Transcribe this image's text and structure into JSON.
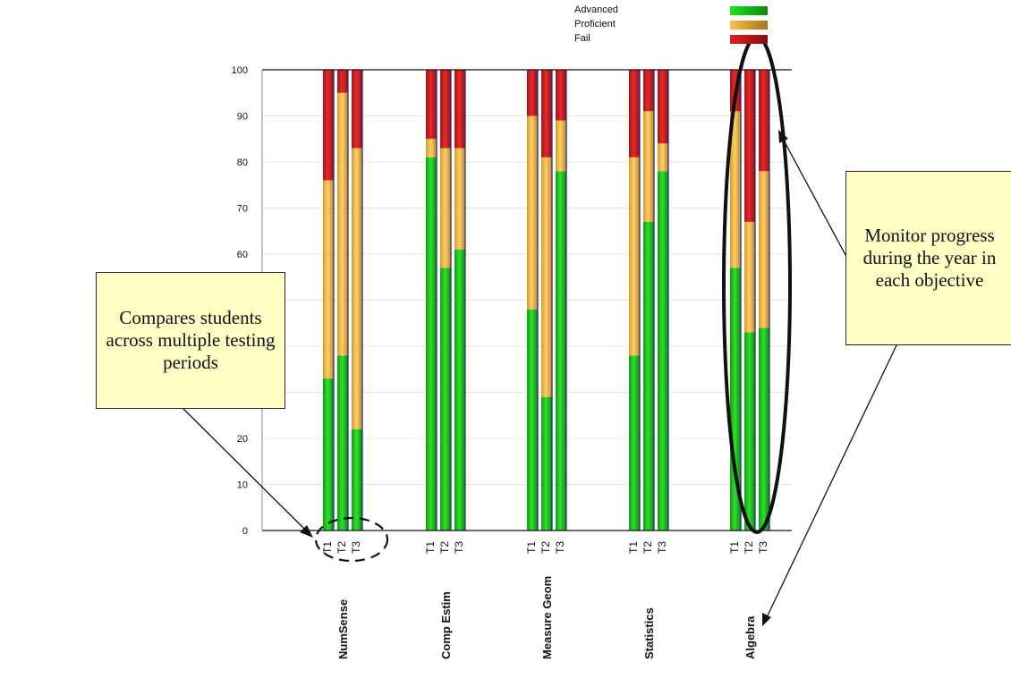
{
  "chart_data": {
    "type": "bar",
    "stacked": true,
    "orientation": "vertical",
    "groups": [
      "NumSense",
      "Comp Estim",
      "Measure Geom",
      "Statistics",
      "Algebra"
    ],
    "periods": [
      "T1",
      "T2",
      "T3"
    ],
    "ylim": [
      0,
      100
    ],
    "yticks": [
      0,
      10,
      20,
      30,
      40,
      50,
      60,
      70,
      80,
      90,
      100
    ],
    "grid": true,
    "legend_position": "top-right",
    "series": [
      {
        "name": "Advanced",
        "color": "#16c416",
        "values": [
          [
            33,
            38,
            22
          ],
          [
            81,
            57,
            61
          ],
          [
            48,
            29,
            78
          ],
          [
            38,
            67,
            78
          ],
          [
            57,
            43,
            44
          ]
        ]
      },
      {
        "name": "Proficient",
        "color": "#f4b93e",
        "values": [
          [
            43,
            57,
            61
          ],
          [
            4,
            26,
            22
          ],
          [
            42,
            52,
            11
          ],
          [
            43,
            24,
            6
          ],
          [
            34,
            24,
            34
          ]
        ]
      },
      {
        "name": "Fail",
        "color": "#cc1818",
        "values": [
          [
            24,
            5,
            17
          ],
          [
            15,
            17,
            17
          ],
          [
            10,
            19,
            11
          ],
          [
            19,
            9,
            16
          ],
          [
            9,
            33,
            22
          ]
        ]
      }
    ]
  },
  "legend": {
    "items": [
      {
        "label": "Advanced",
        "color": "#16c416"
      },
      {
        "label": "Proficient",
        "color": "#e8a020"
      },
      {
        "label": "Fail",
        "color": "#cc1818"
      }
    ]
  },
  "annotations": {
    "left_callout": "Compares students across multiple testing periods",
    "right_callout": "Monitor progress during the year in each objective"
  }
}
